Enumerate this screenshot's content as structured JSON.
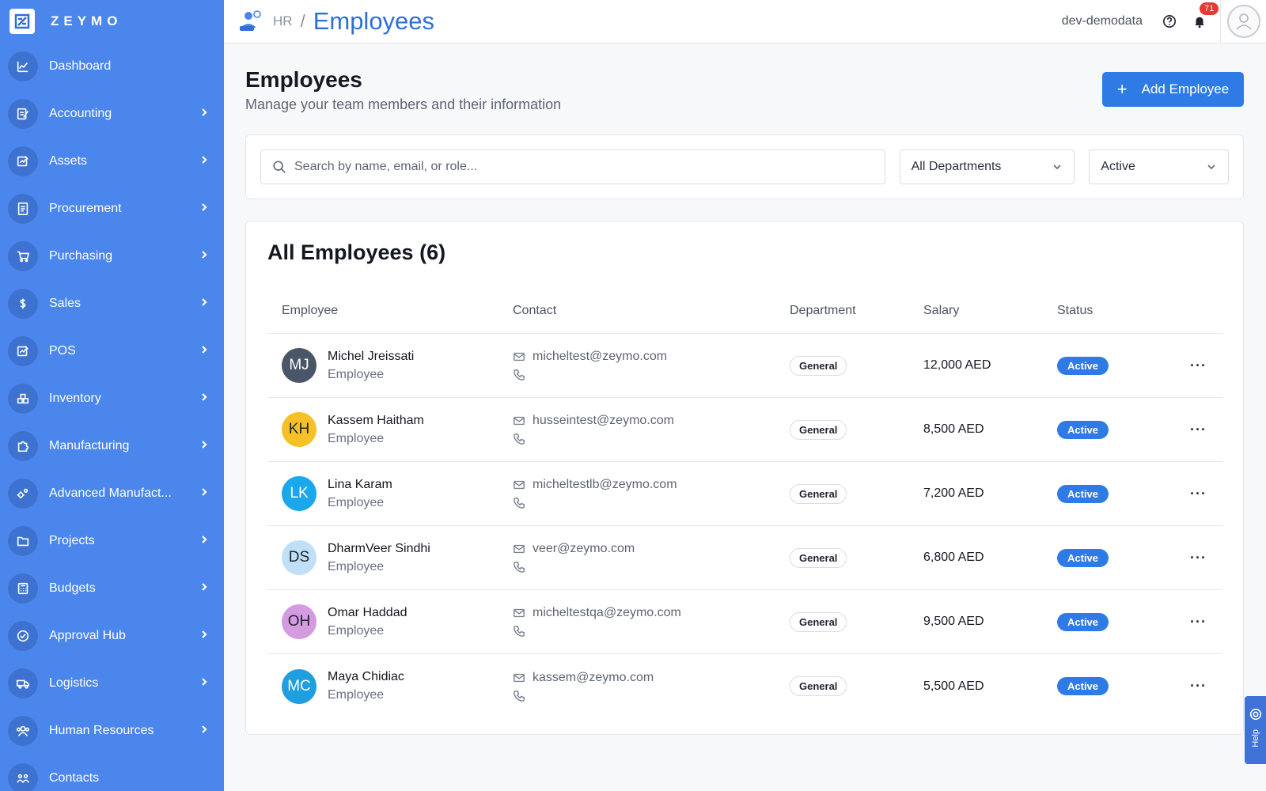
{
  "brand": {
    "name": "ZEYMO"
  },
  "sidebar": {
    "items": [
      {
        "label": "Dashboard",
        "icon": "chart-icon",
        "has_chevron": false
      },
      {
        "label": "Accounting",
        "icon": "edit-doc-icon",
        "has_chevron": true
      },
      {
        "label": "Assets",
        "icon": "asset-icon",
        "has_chevron": true
      },
      {
        "label": "Procurement",
        "icon": "invoice-icon",
        "has_chevron": true
      },
      {
        "label": "Purchasing",
        "icon": "cart-icon",
        "has_chevron": true
      },
      {
        "label": "Sales",
        "icon": "dollar-icon",
        "has_chevron": true
      },
      {
        "label": "POS",
        "icon": "pos-icon",
        "has_chevron": true
      },
      {
        "label": "Inventory",
        "icon": "boxes-icon",
        "has_chevron": true
      },
      {
        "label": "Manufacturing",
        "icon": "puzzle-icon",
        "has_chevron": true
      },
      {
        "label": "Advanced Manufact...",
        "icon": "gears-icon",
        "has_chevron": true
      },
      {
        "label": "Projects",
        "icon": "folder-icon",
        "has_chevron": true
      },
      {
        "label": "Budgets",
        "icon": "calculator-icon",
        "has_chevron": true
      },
      {
        "label": "Approval Hub",
        "icon": "check-circle-icon",
        "has_chevron": true
      },
      {
        "label": "Logistics",
        "icon": "truck-icon",
        "has_chevron": true
      },
      {
        "label": "Human Resources",
        "icon": "users-icon",
        "has_chevron": true
      },
      {
        "label": "Contacts",
        "icon": "contacts-icon",
        "has_chevron": false
      }
    ]
  },
  "topbar": {
    "breadcrumb_parent": "HR",
    "breadcrumb_sep": "/",
    "breadcrumb_title": "Employees",
    "tenant": "dev-demodata",
    "notifications_count": "71"
  },
  "page": {
    "title": "Employees",
    "subtitle": "Manage your team members and their information",
    "add_button": "Add Employee",
    "add_button_icon": "+"
  },
  "filters": {
    "search_placeholder": "Search by name, email, or role...",
    "department": "All Departments",
    "status": "Active"
  },
  "table": {
    "title": "All Employees (6)",
    "columns": [
      "Employee",
      "Contact",
      "Department",
      "Salary",
      "Status"
    ],
    "rows": [
      {
        "initials": "MJ",
        "avatar_color": "#4a5568",
        "name": "Michel Jreissati",
        "role": "Employee",
        "email": "micheltest@zeymo.com",
        "department": "General",
        "salary": "12,000 AED",
        "status": "Active"
      },
      {
        "initials": "KH",
        "avatar_color": "#f6c026",
        "name": "Kassem Haitham",
        "role": "Employee",
        "email": "husseintest@zeymo.com",
        "department": "General",
        "salary": "8,500 AED",
        "status": "Active"
      },
      {
        "initials": "LK",
        "avatar_color": "#1aa7ec",
        "name": "Lina Karam",
        "role": "Employee",
        "email": "micheltestlb@zeymo.com",
        "department": "General",
        "salary": "7,200 AED",
        "status": "Active"
      },
      {
        "initials": "DS",
        "avatar_color": "#bfe0f7",
        "name": "DharmVeer Sindhi",
        "role": "Employee",
        "email": "veer@zeymo.com",
        "department": "General",
        "salary": "6,800 AED",
        "status": "Active"
      },
      {
        "initials": "OH",
        "avatar_color": "#d49be0",
        "name": "Omar Haddad",
        "role": "Employee",
        "email": "micheltestqa@zeymo.com",
        "department": "General",
        "salary": "9,500 AED",
        "status": "Active"
      },
      {
        "initials": "MC",
        "avatar_color": "#1f9ee0",
        "name": "Maya Chidiac",
        "role": "Employee",
        "email": "kassem@zeymo.com",
        "department": "General",
        "salary": "5,500 AED",
        "status": "Active"
      }
    ],
    "more_label": "···"
  },
  "help_tab": {
    "label": "Help"
  },
  "colors": {
    "sidebar": "#4b86ec",
    "accent": "#2f7be6",
    "title_blue": "#2f6fd6"
  }
}
